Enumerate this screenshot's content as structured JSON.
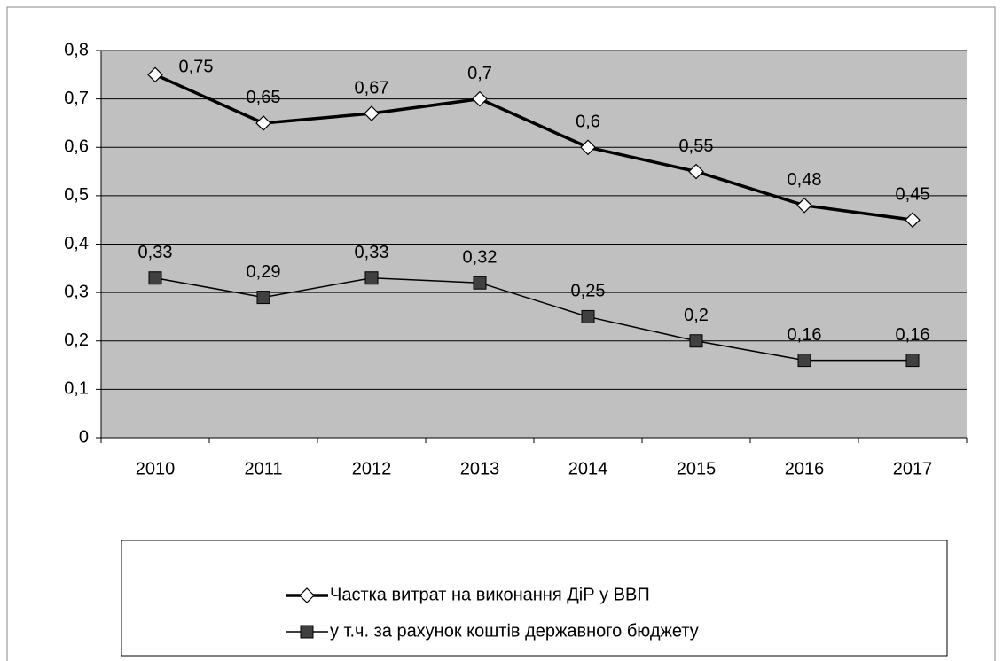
{
  "chart_data": {
    "type": "line",
    "categories": [
      "2010",
      "2011",
      "2012",
      "2013",
      "2014",
      "2015",
      "2016",
      "2017"
    ],
    "series": [
      {
        "name": "Частка витрат на виконання ДіР у ВВП",
        "color": "#000000",
        "marker": "diamond",
        "values": [
          0.75,
          0.65,
          0.67,
          0.7,
          0.6,
          0.55,
          0.48,
          0.45
        ],
        "value_labels": [
          "0,75",
          "0,65",
          "0,67",
          "0,7",
          "0,6",
          "0,55",
          "0,48",
          "0,45"
        ]
      },
      {
        "name": "у т.ч. за рахунок коштів державного бюджету",
        "color": "#000000",
        "marker": "square",
        "values": [
          0.33,
          0.29,
          0.33,
          0.32,
          0.25,
          0.2,
          0.16,
          0.16
        ],
        "value_labels": [
          "0,33",
          "0,29",
          "0,33",
          "0,32",
          "0,25",
          "0,2",
          "0,16",
          "0,16"
        ]
      }
    ],
    "ylim": [
      0,
      0.8
    ],
    "yticks": [
      0,
      {
        "value": 0.1,
        "label": "0,1"
      },
      {
        "value": 0.2,
        "label": "0,2"
      },
      {
        "value": 0.3,
        "label": "0,3"
      },
      {
        "value": 0.4,
        "label": "0,4"
      },
      {
        "value": 0.5,
        "label": "0,5"
      },
      {
        "value": 0.6,
        "label": "0,6"
      },
      {
        "value": 0.7,
        "label": "0,7"
      },
      {
        "value": 0.8,
        "label": "0,8"
      }
    ],
    "grid": true,
    "legend": "bottom"
  }
}
